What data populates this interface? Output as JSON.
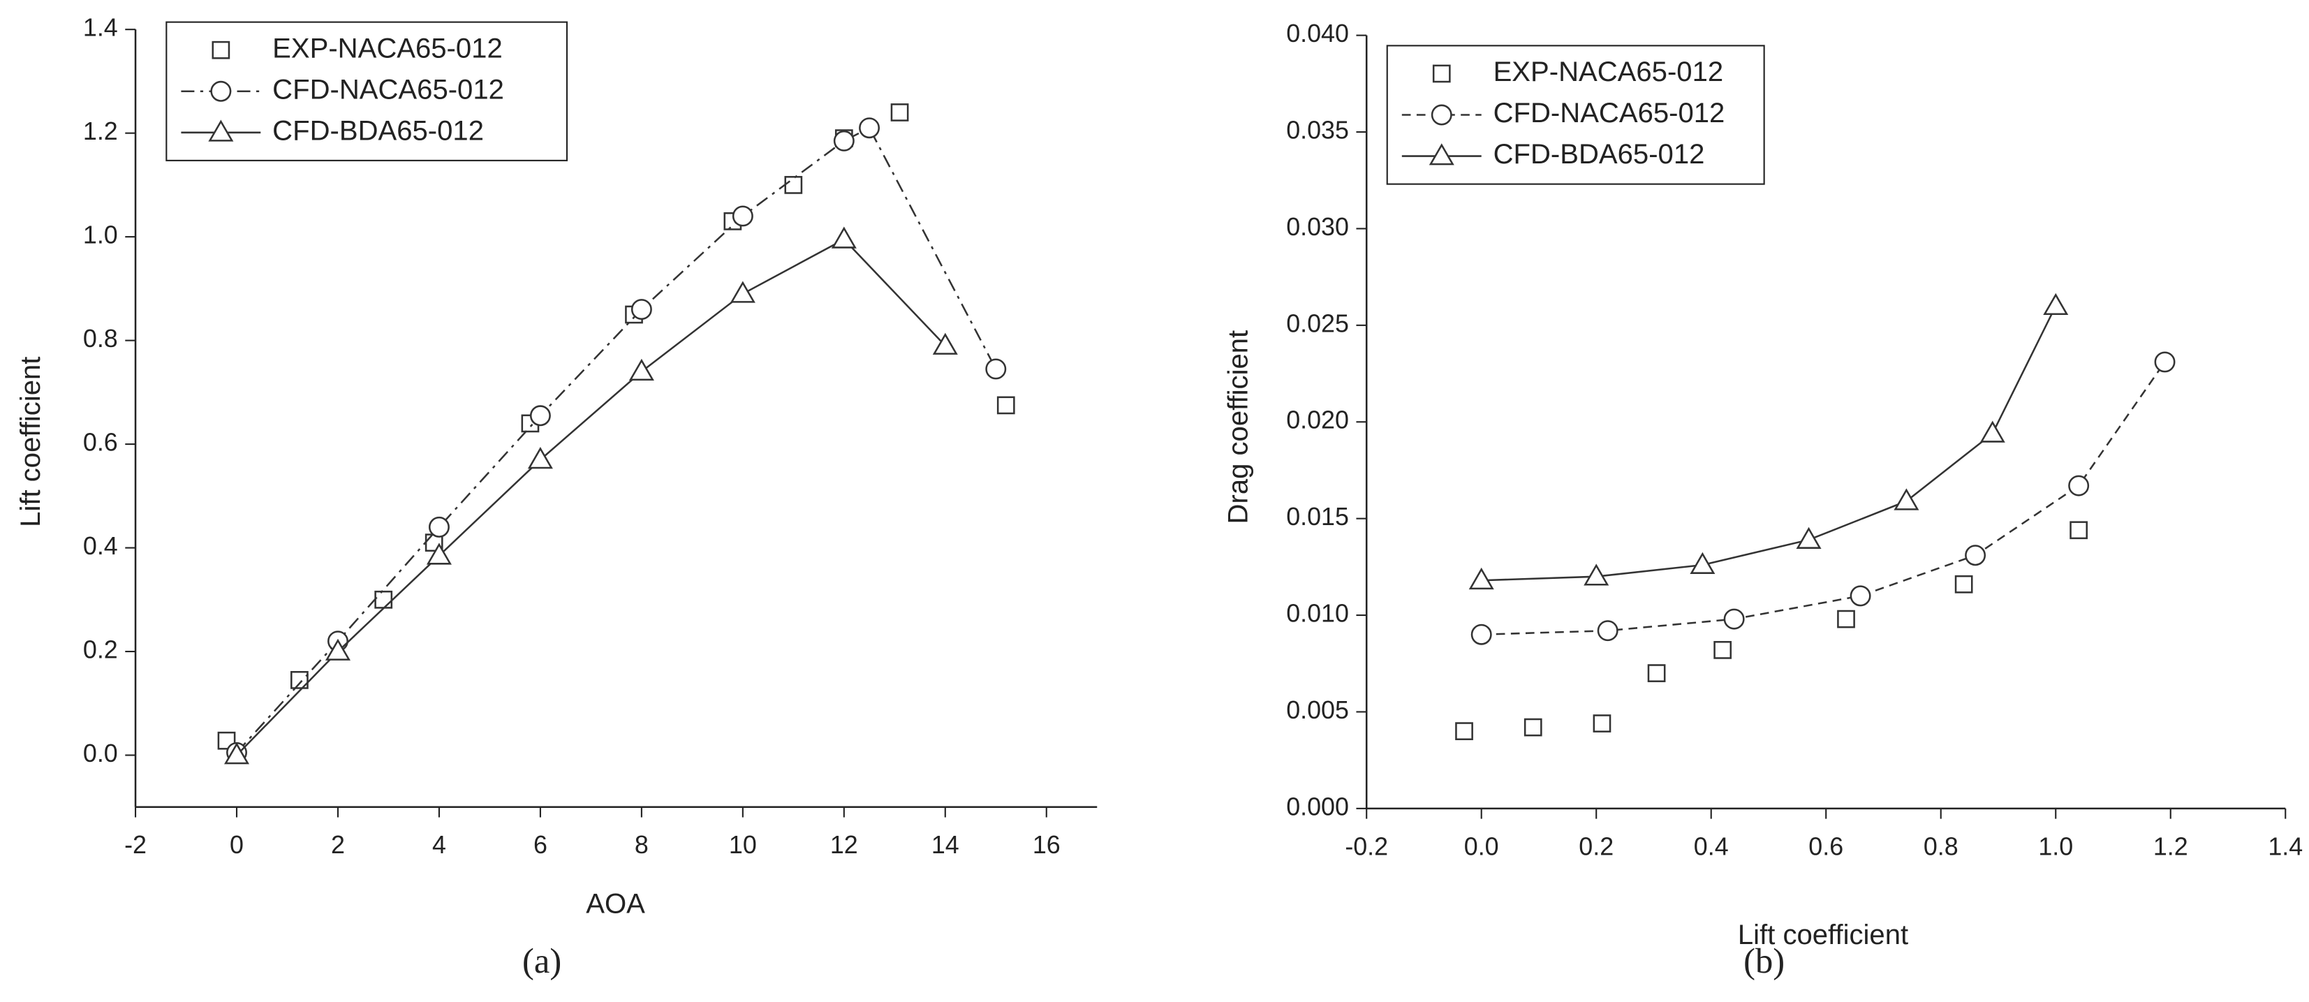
{
  "chart_data": [
    {
      "type": "line",
      "panel_label": "(a)",
      "xlabel": "AOA",
      "ylabel": "Lift coefficient",
      "xlim": [
        -2,
        17
      ],
      "ylim": [
        -0.1,
        1.4
      ],
      "xticks": [
        -2,
        0,
        2,
        4,
        6,
        8,
        10,
        12,
        14,
        16
      ],
      "yticks": [
        {
          "value": 0,
          "label": "0.0"
        },
        0.2,
        0.4,
        0.6,
        0.8,
        {
          "value": 1,
          "label": "1.0"
        },
        1.2,
        1.4
      ],
      "series": [
        {
          "name": "EXP-NACA65-012",
          "color": "#333333",
          "marker": "square",
          "line_style": "none",
          "x": [
            -0.2,
            1.24,
            2.9,
            3.9,
            5.8,
            7.85,
            9.8,
            11.0,
            12.0,
            13.1,
            15.2
          ],
          "values": [
            0.028,
            0.145,
            0.3,
            0.41,
            0.64,
            0.85,
            1.03,
            1.1,
            1.19,
            1.24,
            0.675
          ]
        },
        {
          "name": "CFD-NACA65-012",
          "color": "#333333",
          "marker": "circle",
          "line_style": "dashdot",
          "x": [
            0,
            2,
            4,
            6,
            8,
            10,
            12,
            12.5,
            15
          ],
          "values": [
            0.005,
            0.22,
            0.44,
            0.655,
            0.86,
            1.04,
            1.185,
            1.21,
            0.745
          ]
        },
        {
          "name": "CFD-BDA65-012",
          "color": "#333333",
          "marker": "triangle",
          "line_style": "solid",
          "x": [
            0,
            2,
            4,
            6,
            8,
            10,
            12,
            14
          ],
          "values": [
            0,
            0.2,
            0.385,
            0.57,
            0.74,
            0.89,
            0.995,
            0.79
          ]
        }
      ]
    },
    {
      "type": "line",
      "panel_label": "(b)",
      "xlabel": "Lift coefficient",
      "ylabel": "Drag coefficient",
      "xlim": [
        -0.2,
        1.4
      ],
      "ylim": [
        0,
        0.04
      ],
      "xticks": [
        -0.2,
        {
          "value": 0,
          "label": "0.0"
        },
        0.2,
        0.4,
        0.6,
        0.8,
        {
          "value": 1,
          "label": "1.0"
        },
        1.2,
        1.4
      ],
      "yticks": [
        {
          "value": 0,
          "label": "0.000"
        },
        0.005,
        {
          "value": 0.01,
          "label": "0.010"
        },
        0.015,
        {
          "value": 0.02,
          "label": "0.020"
        },
        0.025,
        {
          "value": 0.03,
          "label": "0.030"
        },
        0.035,
        {
          "value": 0.04,
          "label": "0.040"
        }
      ],
      "series": [
        {
          "name": "EXP-NACA65-012",
          "color": "#333333",
          "marker": "square",
          "line_style": "none",
          "x": [
            -0.03,
            0.09,
            0.21,
            0.305,
            0.42,
            0.635,
            0.84,
            1.04
          ],
          "values": [
            0.004,
            0.0042,
            0.0044,
            0.007,
            0.0082,
            0.0098,
            0.0116,
            0.0144
          ]
        },
        {
          "name": "CFD-NACA65-012",
          "color": "#333333",
          "marker": "circle",
          "line_style": "dash",
          "x": [
            0,
            0.22,
            0.44,
            0.66,
            0.86,
            1.04,
            1.19
          ],
          "values": [
            0.009,
            0.0092,
            0.0098,
            0.011,
            0.0131,
            0.0167,
            0.0231
          ]
        },
        {
          "name": "CFD-BDA65-012",
          "color": "#333333",
          "marker": "triangle",
          "line_style": "solid",
          "x": [
            0,
            0.2,
            0.385,
            0.57,
            0.74,
            0.89,
            1.0
          ],
          "values": [
            0.0118,
            0.012,
            0.0126,
            0.0139,
            0.0159,
            0.0194,
            0.026
          ]
        }
      ]
    }
  ]
}
